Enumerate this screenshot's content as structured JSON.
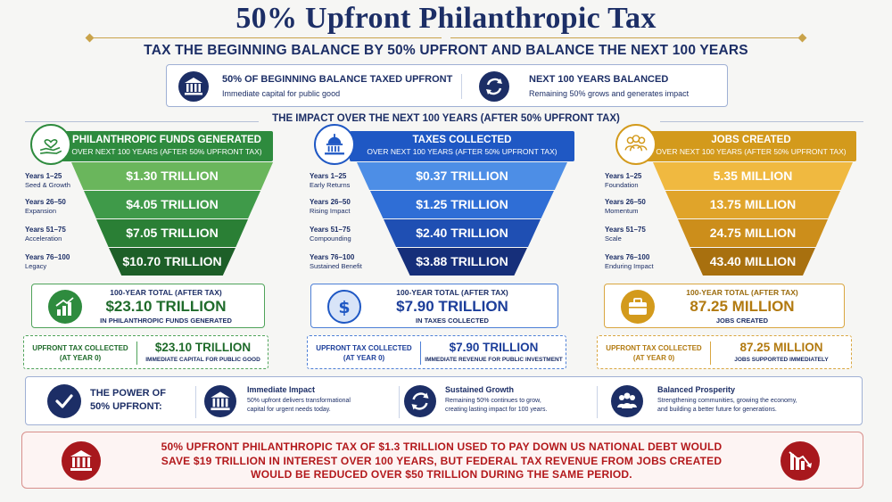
{
  "title": "50% Upfront Philanthropic Tax",
  "subtitle": "TAX THE BEGINNING BALANCE BY 50% UPFRONT AND BALANCE THE NEXT 100 YEARS",
  "top": {
    "left": {
      "icon": "bank-icon",
      "heading": "50% OF BEGINNING BALANCE TAXED UPFRONT",
      "sub": "Immediate capital for public good"
    },
    "right": {
      "icon": "cycle-arrows-icon",
      "heading": "NEXT 100 YEARS BALANCED",
      "sub": "Remaining 50% grows and generates impact"
    }
  },
  "impact_heading": "THE IMPACT OVER THE NEXT 100 YEARS (AFTER 50% UPFRONT TAX)",
  "columns": [
    {
      "icon": "heart-hand-icon",
      "color": "#2e8b3e",
      "title": "PHILANTHROPIC FUNDS GENERATED",
      "subtitle": "OVER NEXT 100 YEARS (AFTER 50% UPFRONT TAX)",
      "rows": [
        {
          "years": "Years 1–25",
          "desc": "Seed & Growth",
          "value": "$1.30 TRILLION"
        },
        {
          "years": "Years 26–50",
          "desc": "Expansion",
          "value": "$4.05 TRILLION"
        },
        {
          "years": "Years 51–75",
          "desc": "Acceleration",
          "value": "$7.05 TRILLION"
        },
        {
          "years": "Years 76–100",
          "desc": "Legacy",
          "value": "$10.70 TRILLION"
        }
      ],
      "total_label": "100-YEAR TOTAL (AFTER TAX)",
      "total_value": "$23.10 TRILLION",
      "total_sub": "IN PHILANTHROPIC FUNDS GENERATED",
      "total_icon": "growth-chart-icon",
      "upfront_label_1": "UPFRONT TAX COLLECTED",
      "upfront_label_2": "(AT YEAR 0)",
      "upfront_value": "$23.10 TRILLION",
      "upfront_sub": "IMMEDIATE CAPITAL FOR PUBLIC GOOD"
    },
    {
      "icon": "capitol-icon",
      "color": "#1f58c4",
      "title": "TAXES COLLECTED",
      "subtitle": "OVER NEXT 100 YEARS (AFTER 50% UPFRONT TAX)",
      "rows": [
        {
          "years": "Years 1–25",
          "desc": "Early Returns",
          "value": "$0.37 TRILLION"
        },
        {
          "years": "Years 26–50",
          "desc": "Rising Impact",
          "value": "$1.25 TRILLION"
        },
        {
          "years": "Years 51–75",
          "desc": "Compounding",
          "value": "$2.40 TRILLION"
        },
        {
          "years": "Years 76–100",
          "desc": "Sustained Benefit",
          "value": "$3.88 TRILLION"
        }
      ],
      "total_label": "100-YEAR TOTAL (AFTER TAX)",
      "total_value": "$7.90 TRILLION",
      "total_sub": "IN TAXES COLLECTED",
      "total_icon": "dollar-coin-icon",
      "upfront_label_1": "UPFRONT TAX COLLECTED",
      "upfront_label_2": "(AT YEAR 0)",
      "upfront_value": "$7.90 TRILLION",
      "upfront_sub": "IMMEDIATE REVENUE FOR PUBLIC INVESTMENT"
    },
    {
      "icon": "people-group-icon",
      "color": "#d39a1c",
      "title": "JOBS CREATED",
      "subtitle": "OVER NEXT 100 YEARS (AFTER 50% UPFRONT TAX)",
      "rows": [
        {
          "years": "Years 1–25",
          "desc": "Foundation",
          "value": "5.35 MILLION"
        },
        {
          "years": "Years 26–50",
          "desc": "Momentum",
          "value": "13.75 MILLION"
        },
        {
          "years": "Years 51–75",
          "desc": "Scale",
          "value": "24.75 MILLION"
        },
        {
          "years": "Years 76–100",
          "desc": "Enduring Impact",
          "value": "43.40 MILLION"
        }
      ],
      "total_label": "100-YEAR TOTAL (AFTER TAX)",
      "total_value": "87.25 MILLION",
      "total_sub": "JOBS CREATED",
      "total_icon": "briefcase-icon",
      "upfront_label_1": "UPFRONT TAX COLLECTED",
      "upfront_label_2": "(AT YEAR 0)",
      "upfront_value": "87.25 MILLION",
      "upfront_sub": "JOBS SUPPORTED IMMEDIATELY"
    }
  ],
  "power": {
    "title_1": "THE POWER OF",
    "title_2": "50% UPFRONT:",
    "items": [
      {
        "icon": "bank-icon",
        "heading": "Immediate Impact",
        "line1": "50% upfront delivers transformational",
        "line2": "capital for urgent needs today."
      },
      {
        "icon": "cycle-arrows-icon",
        "heading": "Sustained Growth",
        "line1": "Remaining 50% continues to grow,",
        "line2": "creating lasting impact for 100 years."
      },
      {
        "icon": "people-group-icon",
        "heading": "Balanced Prosperity",
        "line1": "Strengthening communities, growing the economy,",
        "line2": "and building a better future for generations."
      }
    ]
  },
  "note": {
    "line1": "50% UPFRONT PHILANTHROPIC TAX OF $1.3 TRILLION USED TO PAY DOWN US NATIONAL DEBT WOULD",
    "line2": "SAVE $19 TRILLION IN INTEREST OVER 100 YEARS, BUT FEDERAL TAX REVENUE FROM JOBS CREATED",
    "line3": "WOULD BE REDUCED OVER $50 TRILLION DURING THE SAME PERIOD.",
    "left_icon": "bank-icon",
    "right_icon": "declining-chart-icon"
  }
}
